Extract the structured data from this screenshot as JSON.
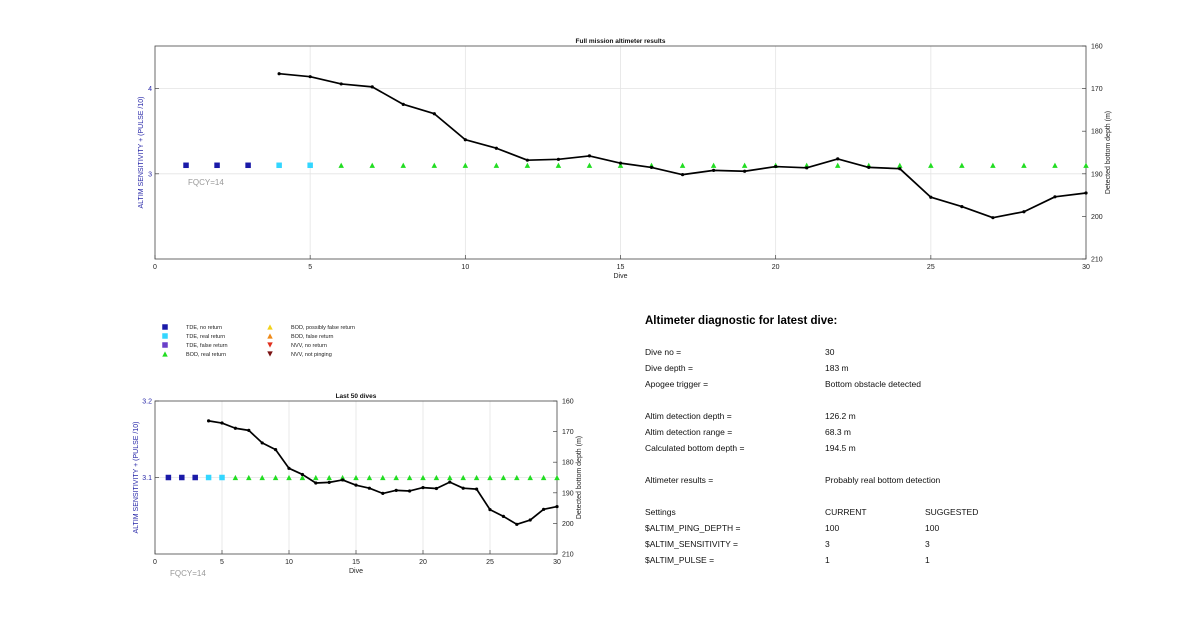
{
  "chart_data": [
    {
      "type": "scatter+line",
      "title": "Full mission altimeter results",
      "xlabel": "Dive",
      "ylabel_left": "ALTIM SENSITIVITY + (PULSE /10)",
      "ylabel_right": "Detected bottom depth (m)",
      "xlim": [
        0,
        30
      ],
      "ylim_left": [
        2.0,
        4.5
      ],
      "ylim_right": [
        160,
        210
      ],
      "right_axis_reversed": true,
      "x_ticks": [
        0,
        5,
        10,
        15,
        20,
        25,
        30
      ],
      "y_ticks_left": [
        3,
        4
      ],
      "y_ticks_right": [
        160,
        170,
        180,
        190,
        200,
        210
      ],
      "grid": true,
      "annotation": "FQCY=14",
      "series": [
        {
          "name": "TDE, no return",
          "x": [
            1,
            2,
            3
          ],
          "y": [
            3.1,
            3.1,
            3.1
          ],
          "marker": "square",
          "color": "#1a1aa8"
        },
        {
          "name": "TDE, real return",
          "x": [
            4,
            5
          ],
          "y": [
            3.1,
            3.1
          ],
          "marker": "square",
          "color": "#33d6ff"
        },
        {
          "name": "BOD, real return",
          "x": [
            6,
            7,
            8,
            9,
            10,
            11,
            12,
            13,
            14,
            15,
            16,
            17,
            18,
            19,
            20,
            21,
            22,
            23,
            24,
            25,
            26,
            27,
            28,
            29,
            30
          ],
          "y": [
            3.1,
            3.1,
            3.1,
            3.1,
            3.1,
            3.1,
            3.1,
            3.1,
            3.1,
            3.1,
            3.1,
            3.1,
            3.1,
            3.1,
            3.1,
            3.1,
            3.1,
            3.1,
            3.1,
            3.1,
            3.1,
            3.1,
            3.1,
            3.1,
            3.1
          ],
          "marker": "triangle-up",
          "color": "#22dd22"
        },
        {
          "name": "",
          "axis": "right",
          "x": [
            4,
            5,
            6,
            7,
            8,
            9,
            10,
            11,
            12,
            13,
            14,
            15,
            16,
            17,
            18,
            19,
            20,
            21,
            22,
            23,
            24,
            25,
            26,
            27,
            28,
            29,
            30
          ],
          "y": [
            166.5,
            167.2,
            168.9,
            169.6,
            173.7,
            175.9,
            182.0,
            184.0,
            186.8,
            186.6,
            185.8,
            187.5,
            188.5,
            190.2,
            189.2,
            189.4,
            188.3,
            188.6,
            186.5,
            188.5,
            188.8,
            195.5,
            197.7,
            200.3,
            198.9,
            195.4,
            194.5
          ],
          "marker": "dot",
          "color": "#000000"
        }
      ]
    },
    {
      "type": "scatter+line",
      "title": "Last 50 dives",
      "xlabel": "Dive",
      "ylabel_left": "ALTIM SENSITIVITY + (PULSE /10)",
      "ylabel_right": "Detected bottom depth (m)",
      "xlim": [
        0,
        30
      ],
      "ylim_left": [
        3.0,
        3.2
      ],
      "ylim_right": [
        160,
        210
      ],
      "right_axis_reversed": true,
      "x_ticks": [
        0,
        5,
        10,
        15,
        20,
        25,
        30
      ],
      "y_ticks_left": [
        3.1,
        3.2
      ],
      "y_ticks_right": [
        160,
        170,
        180,
        190,
        200,
        210
      ],
      "grid": true,
      "annotation": "FQCY=14",
      "series": [
        {
          "name": "TDE, no return",
          "x": [
            1,
            2,
            3
          ],
          "y": [
            3.1,
            3.1,
            3.1
          ],
          "marker": "square",
          "color": "#1a1aa8"
        },
        {
          "name": "TDE, real return",
          "x": [
            4,
            5
          ],
          "y": [
            3.1,
            3.1
          ],
          "marker": "square",
          "color": "#33d6ff"
        },
        {
          "name": "BOD, real return",
          "x": [
            6,
            7,
            8,
            9,
            10,
            11,
            12,
            13,
            14,
            15,
            16,
            17,
            18,
            19,
            20,
            21,
            22,
            23,
            24,
            25,
            26,
            27,
            28,
            29,
            30
          ],
          "y": [
            3.1,
            3.1,
            3.1,
            3.1,
            3.1,
            3.1,
            3.1,
            3.1,
            3.1,
            3.1,
            3.1,
            3.1,
            3.1,
            3.1,
            3.1,
            3.1,
            3.1,
            3.1,
            3.1,
            3.1,
            3.1,
            3.1,
            3.1,
            3.1,
            3.1
          ],
          "marker": "triangle-up",
          "color": "#22dd22"
        },
        {
          "name": "",
          "axis": "right",
          "x": [
            4,
            5,
            6,
            7,
            8,
            9,
            10,
            11,
            12,
            13,
            14,
            15,
            16,
            17,
            18,
            19,
            20,
            21,
            22,
            23,
            24,
            25,
            26,
            27,
            28,
            29,
            30
          ],
          "y": [
            166.5,
            167.2,
            168.9,
            169.6,
            173.7,
            175.9,
            182.0,
            184.0,
            186.8,
            186.6,
            185.8,
            187.5,
            188.5,
            190.2,
            189.2,
            189.4,
            188.3,
            188.6,
            186.5,
            188.5,
            188.8,
            195.5,
            197.7,
            200.3,
            198.9,
            195.4,
            194.5
          ],
          "marker": "dot",
          "color": "#000000"
        }
      ]
    }
  ],
  "legend": {
    "items": [
      {
        "label": "TDE, no return",
        "marker": "square",
        "color": "#1a1aa8"
      },
      {
        "label": "TDE, real return",
        "marker": "square",
        "color": "#33d6ff"
      },
      {
        "label": "TDE, false return",
        "marker": "square",
        "color": "#6a3fc9"
      },
      {
        "label": "BOD, real return",
        "marker": "triangle-up",
        "color": "#22dd22"
      },
      {
        "label": "BOD, possibly false return",
        "marker": "triangle-up",
        "color": "#f2d21b"
      },
      {
        "label": "BOD, false return",
        "marker": "triangle-up",
        "color": "#ef8a18"
      },
      {
        "label": "NVV, no return",
        "marker": "triangle-down",
        "color": "#e0301e"
      },
      {
        "label": "NVV, not pinging",
        "marker": "triangle-down",
        "color": "#7a1212"
      }
    ]
  },
  "diagnostic": {
    "title": "Altimeter diagnostic for latest dive:",
    "dive_no_label": "Dive no =",
    "dive_no_value": "30",
    "dive_depth_label": "Dive depth =",
    "dive_depth_value": "183 m",
    "apogee_label": "Apogee trigger =",
    "apogee_value": "Bottom obstacle detected",
    "det_depth_label": "Altim detection depth =",
    "det_depth_value": "126.2 m",
    "det_range_label": "Altim detection range =",
    "det_range_value": "68.3 m",
    "calc_depth_label": "Calculated bottom depth =",
    "calc_depth_value": "194.5 m",
    "results_label": "Altimeter results =",
    "results_value": "Probably real bottom detection",
    "settings_label": "Settings",
    "current_label": "CURRENT",
    "suggested_label": "SUGGESTED",
    "ping_depth_label": "$ALTIM_PING_DEPTH =",
    "ping_depth_current": "100",
    "ping_depth_suggested": "100",
    "sensitivity_label": "$ALTIM_SENSITIVITY =",
    "sensitivity_current": "3",
    "sensitivity_suggested": "3",
    "pulse_label": "$ALTIM_PULSE =",
    "pulse_current": "1",
    "pulse_suggested": "1"
  }
}
